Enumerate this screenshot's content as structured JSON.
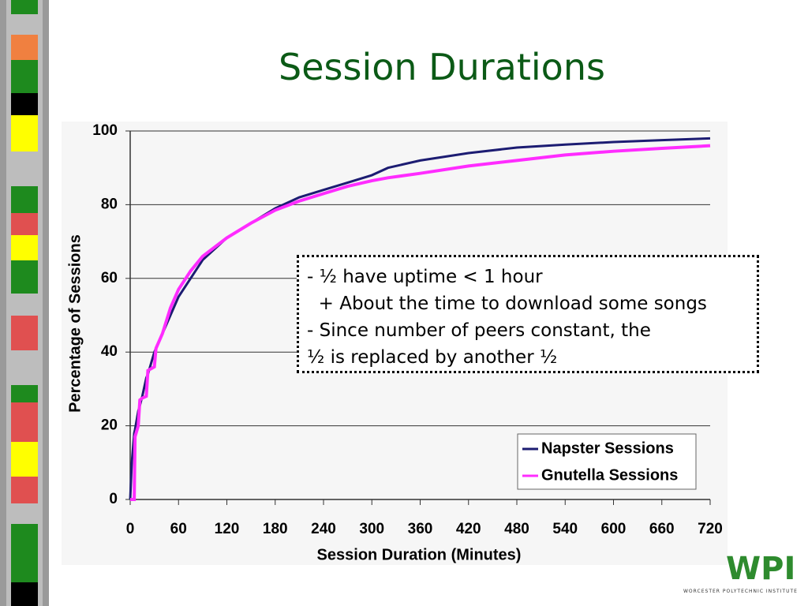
{
  "chart_data": {
    "type": "line",
    "title": "Session Durations",
    "x_label": "Session Duration (Minutes)",
    "y_label": "Percentage of Sessions",
    "x": [
      0,
      2,
      5,
      6,
      10,
      12,
      15,
      20,
      22,
      30,
      32,
      40,
      50,
      60,
      75,
      90,
      120,
      150,
      180,
      210,
      240,
      270,
      300,
      320,
      360,
      420,
      480,
      540,
      600,
      660,
      720
    ],
    "series": [
      {
        "name": "Napster Sessions",
        "color": "#1c1c72",
        "values": [
          0,
          10,
          18,
          19,
          24,
          25.5,
          28,
          33,
          34,
          40,
          41,
          45,
          50,
          55,
          60,
          65,
          71,
          75,
          79,
          82,
          84,
          86,
          88,
          90,
          92,
          94,
          95.5,
          96.3,
          97,
          97.5,
          98
        ]
      },
      {
        "name": "Gnutella Sessions",
        "color": "#ff2cff",
        "values": [
          0,
          0,
          0,
          17,
          20,
          27,
          27.5,
          28,
          35,
          36,
          41,
          45,
          52,
          57,
          62,
          66,
          71,
          75,
          78.5,
          81,
          83,
          85,
          86.5,
          87.3,
          88.5,
          90.5,
          92,
          93.5,
          94.5,
          95.3,
          96
        ]
      }
    ],
    "xlim": [
      0,
      720
    ],
    "xticks": [
      0,
      60,
      120,
      180,
      240,
      300,
      360,
      420,
      480,
      540,
      600,
      660,
      720
    ],
    "ylim": [
      0,
      100
    ],
    "yticks": [
      0,
      20,
      40,
      60,
      80,
      100
    ],
    "grid": true,
    "legend": "lower right"
  },
  "callout": [
    "- ½ have uptime < 1 hour",
    "  + About the time to download some songs",
    "- Since number of peers constant, the",
    "½ is replaced by another ½"
  ],
  "logo": "WPI",
  "logo_subtitle": "WORCESTER POLYTECHNIC INSTITUTE"
}
